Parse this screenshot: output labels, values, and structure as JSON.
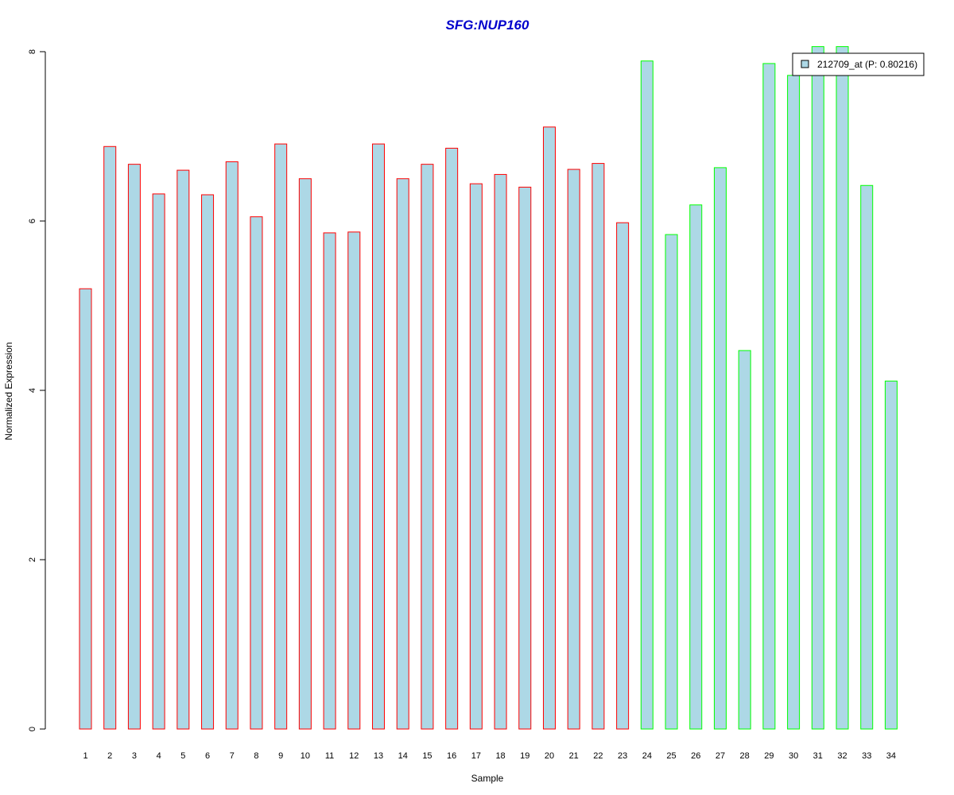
{
  "chart_data": {
    "type": "bar",
    "title": "SFG:NUP160",
    "xlabel": "Sample",
    "ylabel": "Normalized Expression",
    "ylim": [
      0,
      8
    ],
    "yticks": [
      "0",
      "2",
      "4",
      "6",
      "8"
    ],
    "categories": [
      "1",
      "2",
      "3",
      "4",
      "5",
      "6",
      "7",
      "8",
      "9",
      "10",
      "11",
      "12",
      "13",
      "14",
      "15",
      "16",
      "17",
      "18",
      "19",
      "20",
      "21",
      "22",
      "23",
      "24",
      "25",
      "26",
      "27",
      "28",
      "29",
      "30",
      "31",
      "32",
      "33",
      "34"
    ],
    "series": [
      {
        "name": "212709_at (P: 0.80216)",
        "values": [
          5.2,
          6.88,
          6.67,
          6.32,
          6.6,
          6.31,
          6.7,
          6.05,
          6.91,
          6.5,
          5.86,
          5.87,
          6.91,
          6.5,
          6.67,
          6.86,
          6.44,
          6.55,
          6.4,
          7.11,
          6.61,
          6.68,
          5.98,
          7.89,
          5.84,
          6.19,
          6.63,
          4.47,
          7.86,
          7.72,
          8.06,
          8.06,
          6.42,
          4.11
        ]
      }
    ],
    "groups": [
      {
        "border_color": "#ff0000",
        "samples": [
          1,
          23
        ]
      },
      {
        "border_color": "#00ff00",
        "samples": [
          24,
          34
        ]
      }
    ],
    "fill_color": "#add8e6",
    "title_color": "#0000cc",
    "legend_position": "top-right",
    "grid": false
  }
}
